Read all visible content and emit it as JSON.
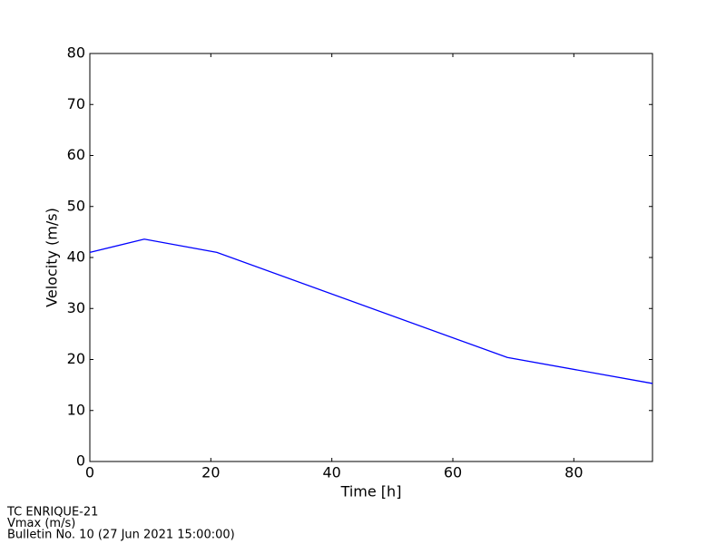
{
  "chart_data": {
    "type": "line",
    "x_label": "Time [h]",
    "y_label": "Velocity (m/s)",
    "x": [
      0,
      9,
      21,
      69,
      93
    ],
    "series": [
      {
        "color": "#0000ff",
        "values": [
          41,
          43.6,
          41,
          20.4,
          15.3
        ]
      }
    ],
    "xlim": [
      0,
      93
    ],
    "ylim": [
      0,
      80
    ],
    "xticks": [
      0,
      20,
      40,
      60,
      80
    ],
    "yticks": [
      0,
      10,
      20,
      30,
      40,
      50,
      60,
      70,
      80
    ],
    "grid": false,
    "annotations": [
      "TC ENRIQUE-21",
      "Vmax (m/s)",
      "Bulletin No. 10 (27 Jun 2021  15:00:00)"
    ]
  }
}
